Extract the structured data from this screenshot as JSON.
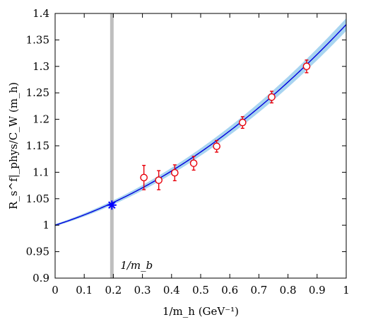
{
  "chart_data": {
    "type": "scatter",
    "xlabel": "1/m_h (GeV⁻¹)",
    "ylabel": "R_s^f|_phys/C_W (m_h)",
    "xlim": [
      0,
      1
    ],
    "ylim": [
      0.9,
      1.4
    ],
    "x_ticks": [
      "0",
      "0.1",
      "0.2",
      "0.3",
      "0.4",
      "0.5",
      "0.6",
      "0.7",
      "0.8",
      "0.9",
      "1"
    ],
    "y_ticks": [
      "0.9",
      "0.95",
      "1",
      "1.05",
      "1.1",
      "1.15",
      "1.2",
      "1.25",
      "1.3",
      "1.35",
      "1.4"
    ],
    "series": [
      {
        "type": "scatter",
        "color": "#e8000b",
        "points": [
          {
            "x": 0.305,
            "y": 1.09,
            "err": 0.023
          },
          {
            "x": 0.356,
            "y": 1.085,
            "err": 0.018
          },
          {
            "x": 0.411,
            "y": 1.099,
            "err": 0.015
          },
          {
            "x": 0.476,
            "y": 1.117,
            "err": 0.013
          },
          {
            "x": 0.555,
            "y": 1.149,
            "err": 0.011
          },
          {
            "x": 0.644,
            "y": 1.194,
            "err": 0.011
          },
          {
            "x": 0.744,
            "y": 1.242,
            "err": 0.011
          },
          {
            "x": 0.864,
            "y": 1.3,
            "err": 0.012
          }
        ]
      },
      {
        "type": "line",
        "color": "#0000dd",
        "band_color": "#a8d4f0",
        "fit": {
          "a": 1.0,
          "b": 0.174,
          "c": 0.205
        },
        "band_halfwidth": [
          0.002,
          0.012
        ]
      }
    ],
    "highlight": {
      "x": 0.195,
      "y": 1.038,
      "label": "1/m_b",
      "line_color": "#bfbfbf",
      "marker_color": "#0000ff"
    },
    "grid": false
  }
}
